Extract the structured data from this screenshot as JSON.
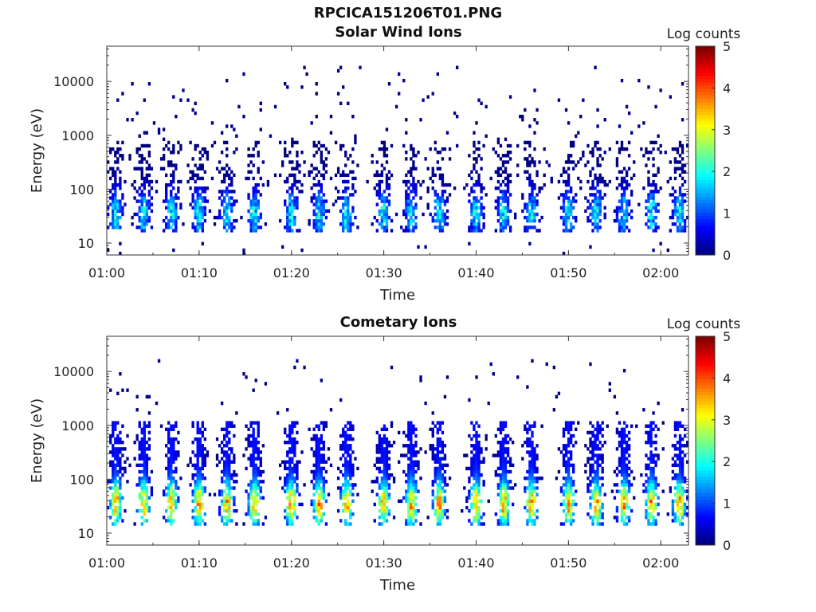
{
  "figure": {
    "title": "RPCICA151206T01.PNG"
  },
  "chart_data": [
    {
      "type": "heatmap",
      "title": "Solar Wind Ions",
      "xlabel": "Time",
      "ylabel": "Energy (eV)",
      "xlim": [
        "01:00",
        "02:03"
      ],
      "ylim": [
        6,
        45000
      ],
      "y_scale": "log",
      "x_ticks": [
        "01:00",
        "01:10",
        "01:20",
        "01:30",
        "01:40",
        "01:50",
        "02:00"
      ],
      "y_ticks": [
        10,
        100,
        1000,
        10000
      ],
      "y_tick_labels": [
        "10",
        "100",
        "1000",
        "10000"
      ],
      "colorbar": {
        "label": "Log counts",
        "range": [
          0,
          5
        ],
        "ticks": [
          "0",
          "1",
          "2",
          "3",
          "4",
          "5"
        ],
        "colormap": "jet"
      },
      "burst_times_min": [
        1,
        4,
        7,
        10,
        13,
        16,
        20,
        23,
        26,
        30,
        33,
        36,
        40,
        43,
        46,
        50,
        53,
        56,
        59,
        62
      ],
      "burst_peak_energy_eV": 35,
      "burst_peak_log_counts": 2.2,
      "background": "scattered single counts (log counts ~0) between 100 and 20000 eV"
    },
    {
      "type": "heatmap",
      "title": "Cometary Ions",
      "xlabel": "Time",
      "ylabel": "Energy (eV)",
      "xlim": [
        "01:00",
        "02:03"
      ],
      "ylim": [
        6,
        45000
      ],
      "y_scale": "log",
      "x_ticks": [
        "01:00",
        "01:10",
        "01:20",
        "01:30",
        "01:40",
        "01:50",
        "02:00"
      ],
      "y_ticks": [
        10,
        100,
        1000,
        10000
      ],
      "y_tick_labels": [
        "10",
        "100",
        "1000",
        "10000"
      ],
      "colorbar": {
        "label": "Log counts",
        "range": [
          0,
          5
        ],
        "ticks": [
          "0",
          "1",
          "2",
          "3",
          "4",
          "5"
        ],
        "colormap": "jet"
      },
      "burst_times_min": [
        1,
        4,
        7,
        10,
        13,
        16,
        20,
        23,
        26,
        30,
        33,
        36,
        40,
        43,
        46,
        50,
        53,
        56,
        59,
        62
      ],
      "burst_peak_energy_eV": 35,
      "burst_peak_log_counts": 3.6,
      "background": "sparse counts (log counts ~0) between 2000 and 15000 eV"
    }
  ]
}
